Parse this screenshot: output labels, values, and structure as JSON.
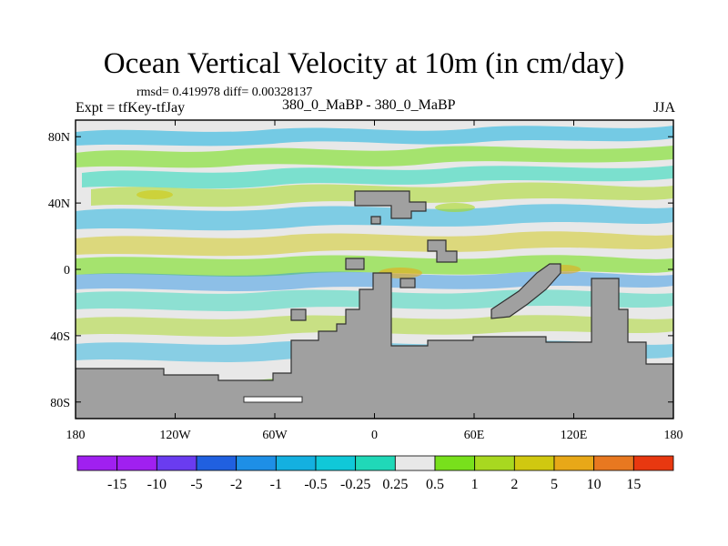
{
  "header": {
    "title": "Ocean Vertical Velocity at 10m (in cm/day)",
    "stats": "rmsd= 0.419978 diff= 0.00328137",
    "left_label": "Expt = tfKey-tfJay",
    "center_label": "380_0_MaBP - 380_0_MaBP",
    "right_label": "JJA"
  },
  "map": {
    "lon_range": [
      -180,
      180
    ],
    "lat_range": [
      -90,
      90
    ],
    "x_ticks": [
      {
        "value": -180,
        "label": "180"
      },
      {
        "value": -120,
        "label": "120W"
      },
      {
        "value": -60,
        "label": "60W"
      },
      {
        "value": 0,
        "label": "0"
      },
      {
        "value": 60,
        "label": "60E"
      },
      {
        "value": 120,
        "label": "120E"
      },
      {
        "value": 180,
        "label": "180"
      }
    ],
    "y_ticks": [
      {
        "value": 80,
        "label": "80N"
      },
      {
        "value": 40,
        "label": "40N"
      },
      {
        "value": 0,
        "label": "0"
      },
      {
        "value": -40,
        "label": "40S"
      },
      {
        "value": -80,
        "label": "80S"
      }
    ],
    "background_color": "#e8e8e8",
    "land_color": "#a0a0a0"
  },
  "colorbar": {
    "labels": [
      "-15",
      "-10",
      "-5",
      "-2",
      "-1",
      "-0.5",
      "-0.25",
      "0.25",
      "0.5",
      "1",
      "2",
      "5",
      "10",
      "15"
    ],
    "colors": [
      "#a020f0",
      "#6a3cf0",
      "#2060e0",
      "#1e8fe6",
      "#14b0e0",
      "#10c8d8",
      "#20d8b8",
      "#e8e8e8",
      "#78e01c",
      "#a8d820",
      "#d0c810",
      "#e8a818",
      "#e87820",
      "#e83810"
    ]
  }
}
